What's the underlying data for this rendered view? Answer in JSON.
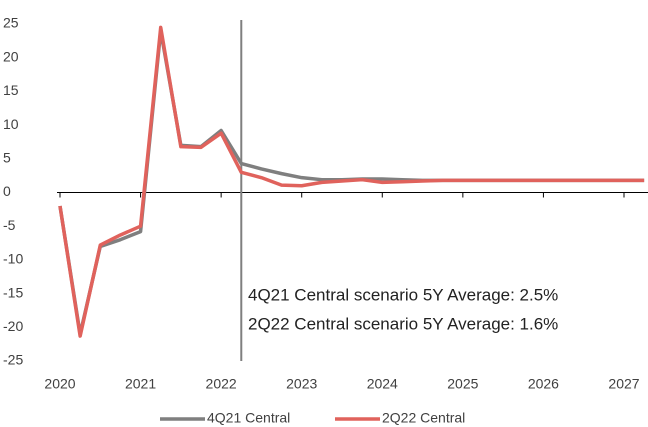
{
  "chart_data": {
    "type": "line",
    "x": [
      2020,
      2020.25,
      2020.5,
      2020.75,
      2021,
      2021.25,
      2021.5,
      2021.75,
      2022,
      2022.25,
      2022.5,
      2022.75,
      2023,
      2023.25,
      2023.5,
      2023.75,
      2024,
      2024.25,
      2024.5,
      2024.75,
      2025,
      2025.25,
      2025.5,
      2025.75,
      2026,
      2026.25,
      2026.5,
      2026.75,
      2027,
      2027.25
    ],
    "series": [
      {
        "name": "4Q21 Central",
        "color": "#7f7f7f",
        "values": [
          -2,
          -21,
          -8,
          -7,
          -5.8,
          24,
          7,
          6.8,
          9.2,
          4.3,
          3.5,
          2.8,
          2.2,
          1.9,
          1.9,
          2.0,
          2.0,
          1.9,
          1.8,
          1.8,
          1.8,
          1.8,
          1.8,
          1.8,
          1.8,
          1.8,
          1.8,
          1.8,
          1.8,
          1.8
        ]
      },
      {
        "name": "2Q22 Central",
        "color": "#e0625c",
        "values": [
          -2,
          -21.3,
          -7.8,
          -6.3,
          -5,
          24.5,
          6.8,
          6.7,
          8.8,
          3.0,
          2.2,
          1.1,
          1.0,
          1.5,
          1.7,
          1.9,
          1.5,
          1.6,
          1.7,
          1.8,
          1.8,
          1.8,
          1.8,
          1.8,
          1.8,
          1.8,
          1.8,
          1.8,
          1.8,
          1.8
        ]
      }
    ],
    "xlim": [
      2020,
      2027.3
    ],
    "xticks": [
      2020,
      2021,
      2022,
      2023,
      2024,
      2025,
      2026,
      2027
    ],
    "ylim": [
      -25,
      25
    ],
    "yticks": [
      -25,
      -20,
      -15,
      -10,
      -5,
      0,
      5,
      10,
      15,
      20,
      25
    ],
    "vline_x": 2022.25,
    "annotations": [
      "4Q21 Central scenario 5Y Average: 2.5%",
      "2Q22 Central scenario 5Y Average: 1.6%"
    ],
    "legend": "bottom"
  }
}
